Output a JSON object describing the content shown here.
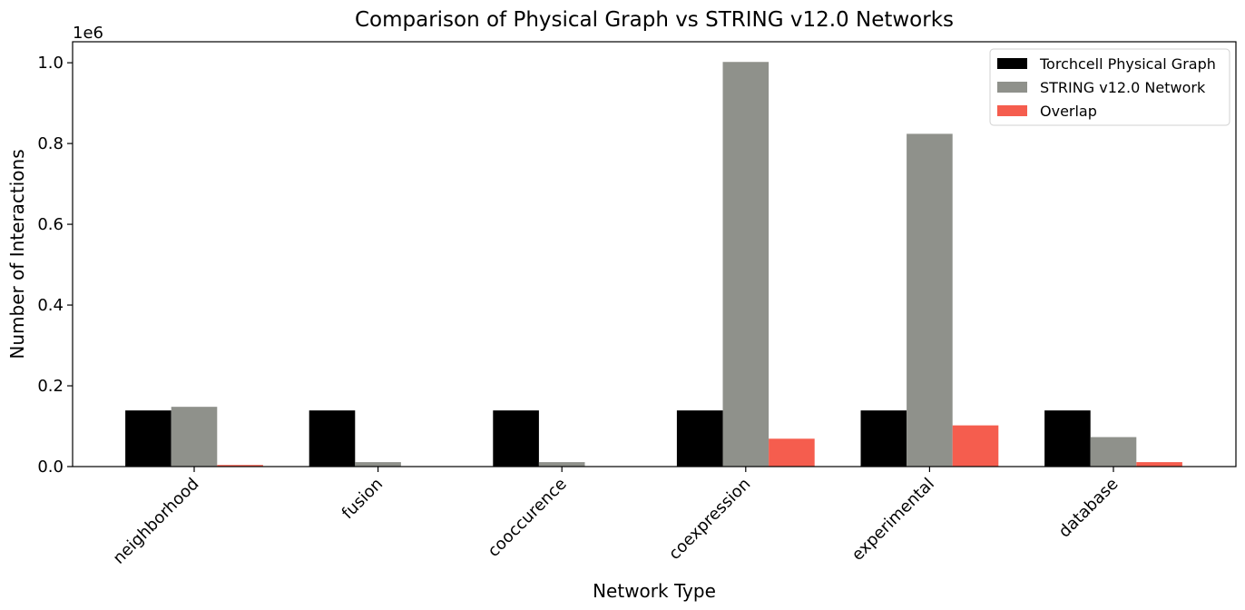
{
  "chart_data": {
    "type": "bar",
    "title": "Comparison of Physical Graph vs STRING v12.0 Networks",
    "xlabel": "Network Type",
    "ylabel": "Number of Interactions",
    "y_offset_label": "1e6",
    "categories": [
      "neighborhood",
      "fusion",
      "cooccurence",
      "coexpression",
      "experimental",
      "database"
    ],
    "series": [
      {
        "name": "Torchcell Physical Graph",
        "color": "#000000",
        "values": [
          139000,
          139000,
          139000,
          139000,
          139000,
          139000
        ]
      },
      {
        "name": "STRING v12.0 Network",
        "color": "#8f918b",
        "values": [
          148000,
          11000,
          11000,
          1002000,
          824000,
          73000
        ]
      },
      {
        "name": "Overlap",
        "color": "#f55d4e",
        "values": [
          4000,
          500,
          500,
          69000,
          102000,
          11000
        ]
      }
    ],
    "ylim": [
      0,
      1052000
    ],
    "yticks": [
      0,
      200000,
      400000,
      600000,
      800000,
      1000000
    ],
    "ytick_labels": [
      "0.0",
      "0.2",
      "0.4",
      "0.6",
      "0.8",
      "1.0"
    ],
    "grid": false,
    "legend_position": "top-right"
  }
}
